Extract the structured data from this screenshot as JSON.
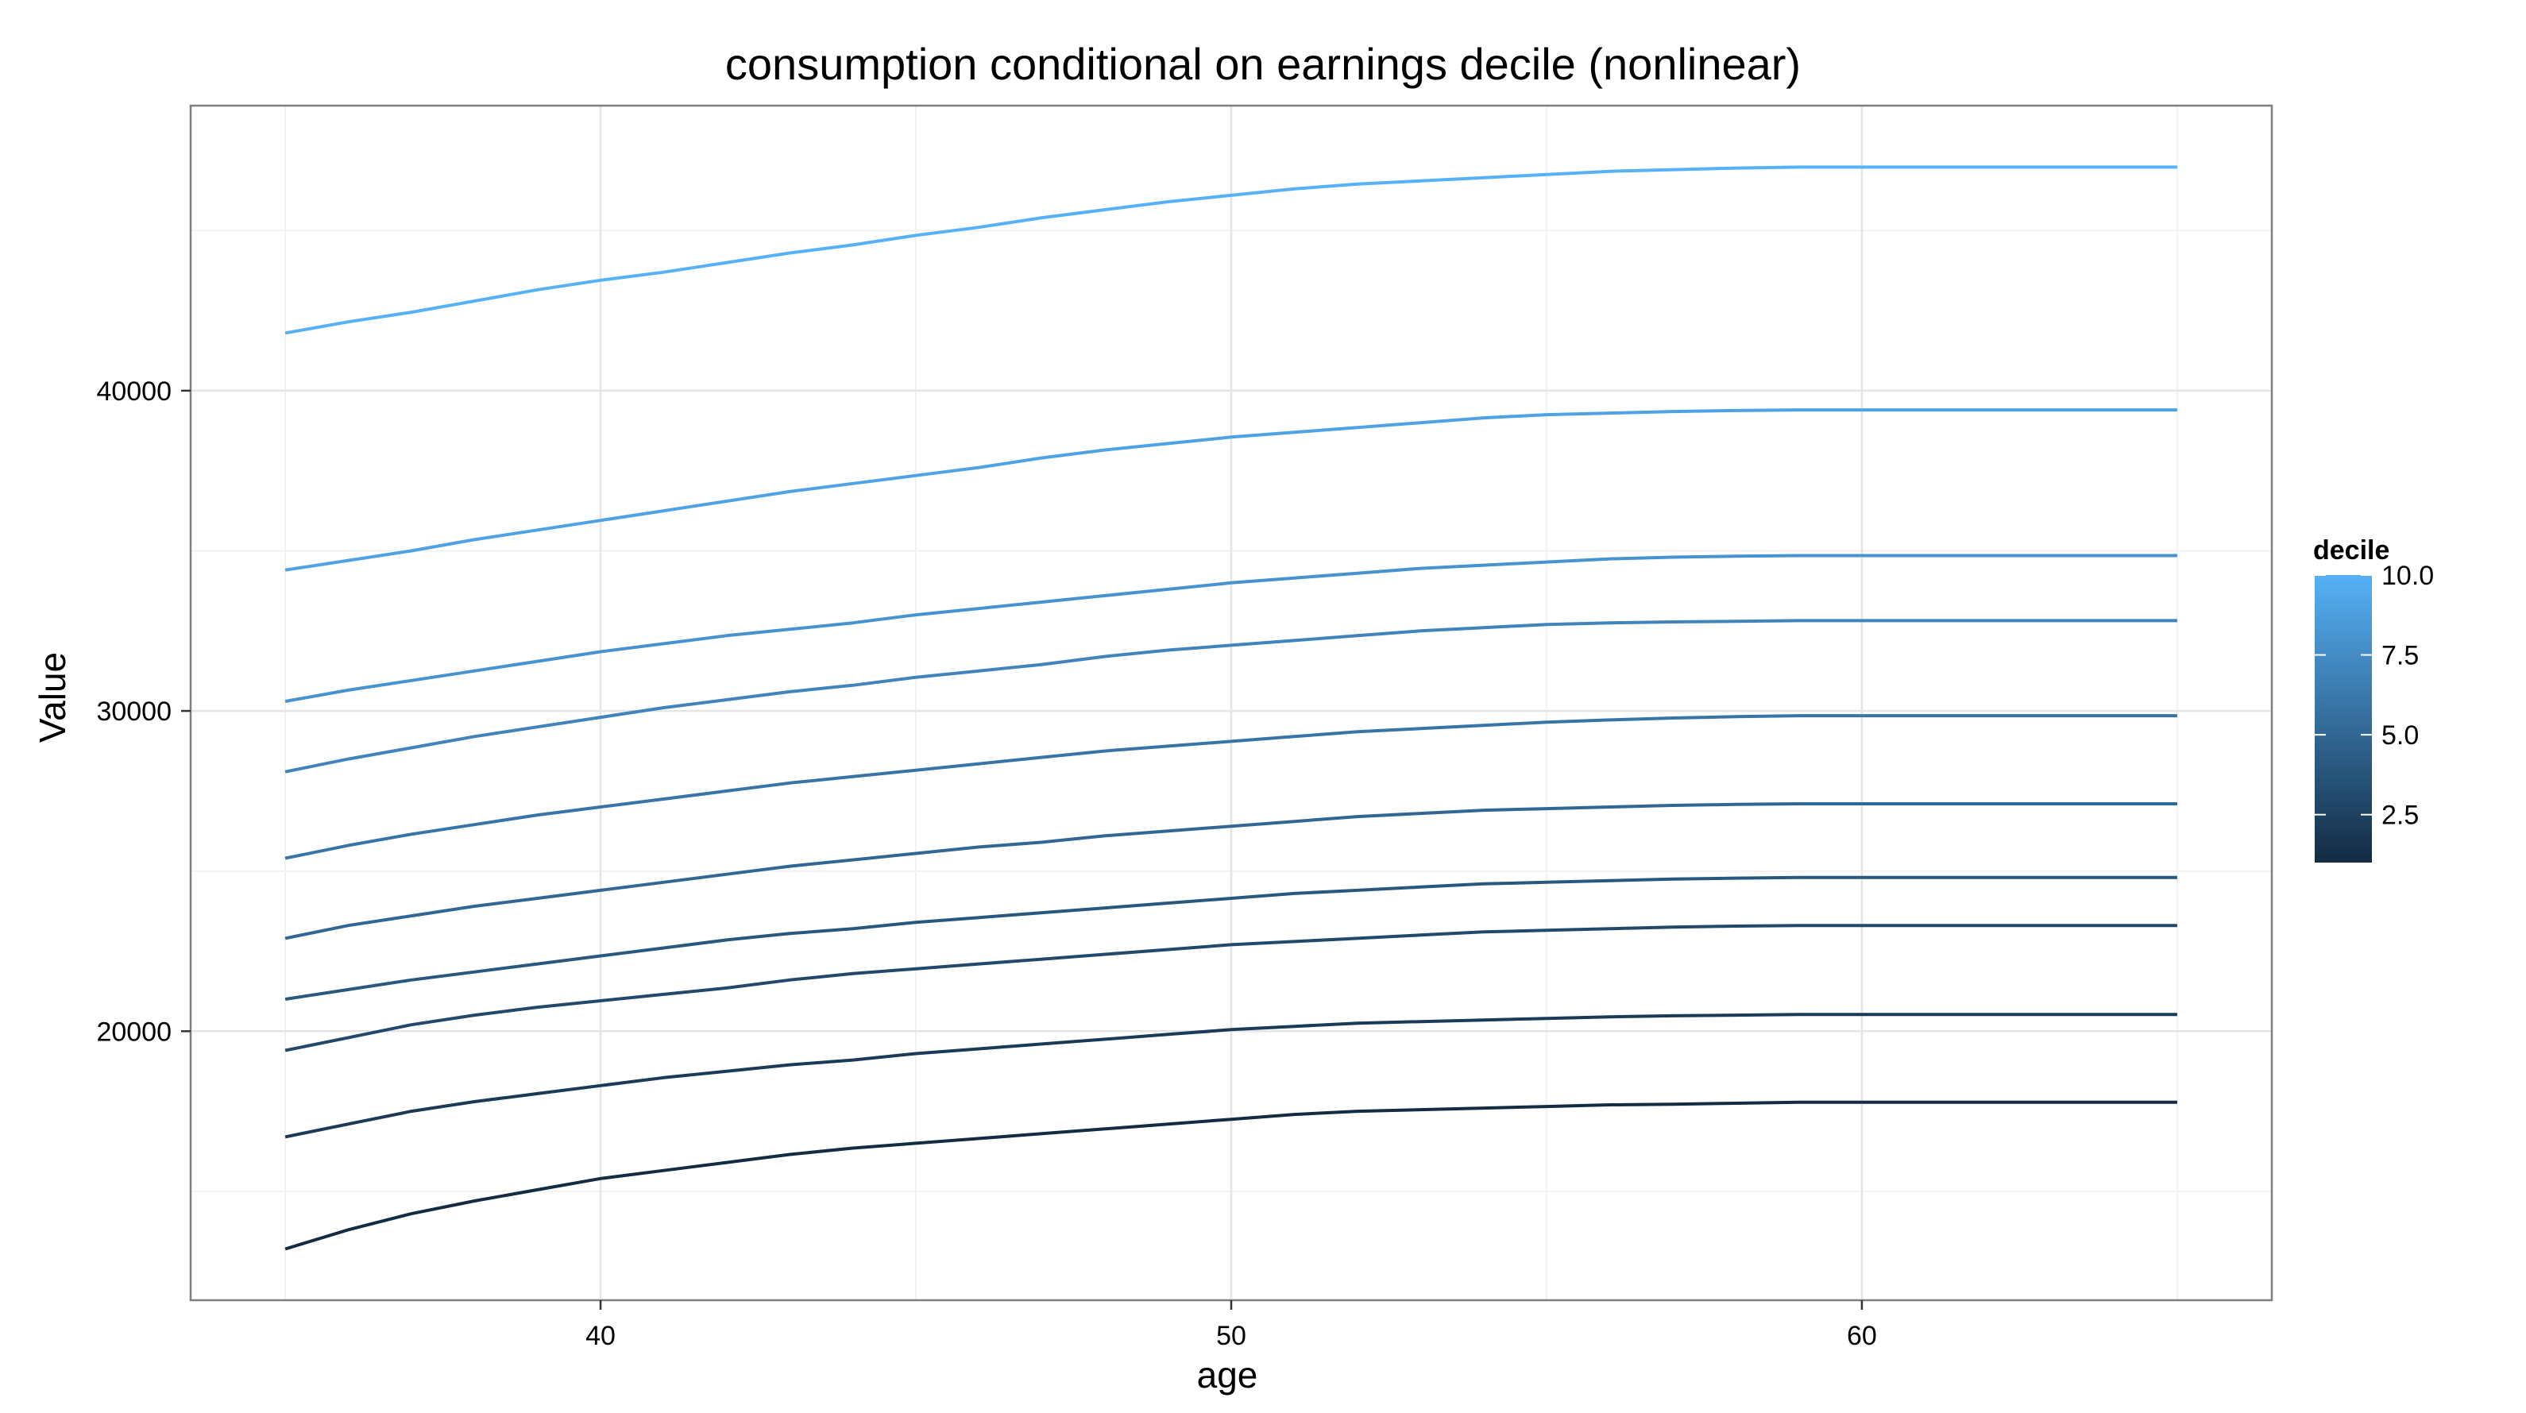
{
  "chart_data": {
    "type": "line",
    "title": "consumption conditional on earnings decile (nonlinear)",
    "xlabel": "age",
    "ylabel": "Value",
    "xlim": [
      33.5,
      66.5
    ],
    "ylim": [
      11600,
      48900
    ],
    "x_ticks": [
      40,
      50,
      60
    ],
    "x_tick_labels": [
      "40",
      "50",
      "60"
    ],
    "y_ticks": [
      20000,
      30000,
      40000
    ],
    "y_tick_labels": [
      "20000",
      "30000",
      "40000"
    ],
    "grid": true,
    "legend": {
      "title": "decile",
      "type": "colorbar",
      "placement": "right",
      "range": [
        1,
        10
      ],
      "ticks": [
        2.5,
        5.0,
        7.5,
        10.0
      ],
      "tick_labels": [
        "2.5",
        "5.0",
        "7.5",
        "10.0"
      ],
      "color_low": "#132b43",
      "color_high": "#56b1f7"
    },
    "x": [
      35,
      36,
      37,
      38,
      39,
      40,
      41,
      42,
      43,
      44,
      45,
      46,
      47,
      48,
      49,
      50,
      51,
      52,
      53,
      54,
      55,
      56,
      57,
      58,
      59,
      60,
      61,
      62,
      63,
      64,
      65
    ],
    "series": [
      {
        "decile": 1,
        "values": [
          13200,
          13800,
          14300,
          14700,
          15050,
          15400,
          15650,
          15900,
          16150,
          16350,
          16500,
          16650,
          16800,
          16950,
          17100,
          17250,
          17400,
          17500,
          17550,
          17600,
          17650,
          17700,
          17720,
          17750,
          17780,
          17780,
          17780,
          17780,
          17780,
          17780,
          17780
        ]
      },
      {
        "decile": 2,
        "values": [
          16700,
          17100,
          17500,
          17800,
          18050,
          18300,
          18550,
          18750,
          18950,
          19100,
          19300,
          19450,
          19600,
          19750,
          19900,
          20050,
          20150,
          20250,
          20300,
          20350,
          20400,
          20450,
          20480,
          20500,
          20520,
          20520,
          20520,
          20520,
          20520,
          20520,
          20520
        ]
      },
      {
        "decile": 3,
        "values": [
          19400,
          19800,
          20200,
          20500,
          20750,
          20950,
          21150,
          21350,
          21600,
          21800,
          21950,
          22100,
          22250,
          22400,
          22550,
          22700,
          22800,
          22900,
          23000,
          23100,
          23150,
          23200,
          23250,
          23280,
          23300,
          23300,
          23300,
          23300,
          23300,
          23300,
          23300
        ]
      },
      {
        "decile": 4,
        "values": [
          21000,
          21300,
          21600,
          21850,
          22100,
          22350,
          22600,
          22850,
          23050,
          23200,
          23400,
          23550,
          23700,
          23850,
          24000,
          24150,
          24300,
          24400,
          24500,
          24600,
          24650,
          24700,
          24750,
          24780,
          24800,
          24800,
          24800,
          24800,
          24800,
          24800,
          24800
        ]
      },
      {
        "decile": 5,
        "values": [
          22900,
          23300,
          23600,
          23900,
          24150,
          24400,
          24650,
          24900,
          25150,
          25350,
          25550,
          25750,
          25900,
          26100,
          26250,
          26400,
          26550,
          26700,
          26800,
          26900,
          26950,
          27000,
          27050,
          27080,
          27100,
          27100,
          27100,
          27100,
          27100,
          27100,
          27100
        ]
      },
      {
        "decile": 6,
        "values": [
          25400,
          25800,
          26150,
          26450,
          26750,
          27000,
          27250,
          27500,
          27750,
          27950,
          28150,
          28350,
          28550,
          28750,
          28900,
          29050,
          29200,
          29350,
          29450,
          29550,
          29650,
          29720,
          29780,
          29820,
          29850,
          29850,
          29850,
          29850,
          29850,
          29850,
          29850
        ]
      },
      {
        "decile": 7,
        "values": [
          28100,
          28500,
          28850,
          29200,
          29500,
          29800,
          30100,
          30350,
          30600,
          30800,
          31050,
          31250,
          31450,
          31700,
          31900,
          32050,
          32200,
          32350,
          32500,
          32600,
          32700,
          32750,
          32780,
          32800,
          32820,
          32820,
          32820,
          32820,
          32820,
          32820,
          32820
        ]
      },
      {
        "decile": 8,
        "values": [
          30300,
          30650,
          30950,
          31250,
          31550,
          31850,
          32100,
          32350,
          32550,
          32750,
          33000,
          33200,
          33400,
          33600,
          33800,
          34000,
          34150,
          34300,
          34450,
          34550,
          34650,
          34750,
          34800,
          34830,
          34850,
          34850,
          34850,
          34850,
          34850,
          34850,
          34850
        ]
      },
      {
        "decile": 9,
        "values": [
          34400,
          34700,
          35000,
          35350,
          35650,
          35950,
          36250,
          36550,
          36850,
          37100,
          37350,
          37600,
          37900,
          38150,
          38350,
          38550,
          38700,
          38850,
          39000,
          39150,
          39250,
          39300,
          39350,
          39380,
          39400,
          39400,
          39400,
          39400,
          39400,
          39400,
          39400
        ]
      },
      {
        "decile": 10,
        "values": [
          41800,
          42150,
          42450,
          42800,
          43150,
          43450,
          43700,
          44000,
          44300,
          44550,
          44850,
          45100,
          45400,
          45650,
          45900,
          46100,
          46300,
          46450,
          46550,
          46650,
          46750,
          46850,
          46900,
          46950,
          46980,
          46980,
          46980,
          46980,
          46980,
          46980,
          46980
        ]
      }
    ]
  }
}
